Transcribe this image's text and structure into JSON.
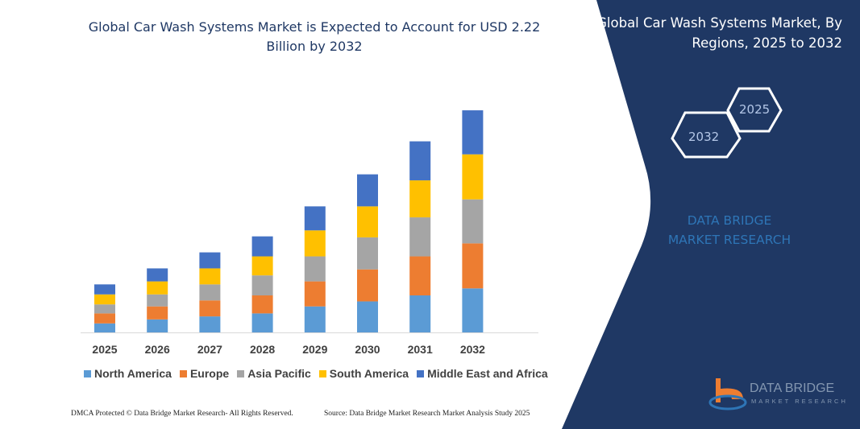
{
  "header": {
    "title": "Global Car Wash Systems Market is Expected to Account for USD 2.22 Billion by 2032"
  },
  "side_panel": {
    "title": "Global Car Wash Systems Market, By Regions, 2025 to 2032",
    "hex_left": "2032",
    "hex_right": "2025",
    "brand": "DATA BRIDGE MARKET RESEARCH",
    "logo_title": "DATA BRIDGE",
    "logo_subtitle": "MARKET RESEARCH"
  },
  "footer": {
    "left": "DMCA Protected © Data Bridge Market Research- All Rights Reserved.",
    "right": "Source: Data Bridge Market Research Market Analysis Study 2025"
  },
  "colors": {
    "panel": "#1f3864",
    "title": "#1f3864"
  },
  "chart_data": {
    "type": "bar",
    "stacked": true,
    "title": "",
    "xlabel": "",
    "ylabel": "",
    "grid": false,
    "legend": "bottom",
    "unit": "USD Billion (estimated)",
    "categories": [
      "2025",
      "2026",
      "2027",
      "2028",
      "2029",
      "2030",
      "2031",
      "2032"
    ],
    "series": [
      {
        "name": "North America",
        "color": "#5b9bd5",
        "values": [
          0.09,
          0.13,
          0.16,
          0.19,
          0.26,
          0.31,
          0.37,
          0.44
        ]
      },
      {
        "name": "Europe",
        "color": "#ed7d31",
        "values": [
          0.1,
          0.13,
          0.16,
          0.18,
          0.25,
          0.32,
          0.39,
          0.45
        ]
      },
      {
        "name": "Asia Pacific",
        "color": "#a5a5a5",
        "values": [
          0.09,
          0.12,
          0.16,
          0.2,
          0.25,
          0.32,
          0.39,
          0.44
        ]
      },
      {
        "name": "South America",
        "color": "#ffc000",
        "values": [
          0.1,
          0.13,
          0.16,
          0.19,
          0.26,
          0.31,
          0.37,
          0.45
        ]
      },
      {
        "name": "Middle East and Africa",
        "color": "#4472c4",
        "values": [
          0.1,
          0.13,
          0.16,
          0.2,
          0.24,
          0.32,
          0.39,
          0.44
        ]
      }
    ]
  }
}
